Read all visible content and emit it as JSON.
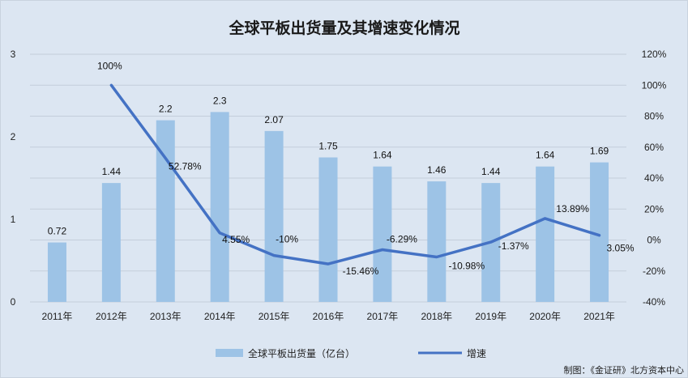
{
  "chart_data": {
    "type": "bar+line",
    "title": "全球平板出货量及其增速变化情况",
    "categories": [
      "2011年",
      "2012年",
      "2013年",
      "2014年",
      "2015年",
      "2016年",
      "2017年",
      "2018年",
      "2019年",
      "2020年",
      "2021年"
    ],
    "series": [
      {
        "name": "全球平板出货量（亿台）",
        "type": "bar",
        "axis": "left",
        "values": [
          0.72,
          1.44,
          2.2,
          2.3,
          2.07,
          1.75,
          1.64,
          1.46,
          1.44,
          1.64,
          1.69
        ],
        "labels": [
          "0.72",
          "1.44",
          "2.2",
          "2.3",
          "2.07",
          "1.75",
          "1.64",
          "1.46",
          "1.44",
          "1.64",
          "1.69"
        ],
        "color": "#9dc3e6"
      },
      {
        "name": "增速",
        "type": "line",
        "axis": "right",
        "values": [
          null,
          100,
          52.78,
          4.55,
          -10,
          -15.46,
          -6.29,
          -10.98,
          -1.37,
          13.89,
          3.05
        ],
        "labels": [
          "",
          "100%",
          "52.78%",
          "4.55%",
          "-10%",
          "-15.46%",
          "-6.29%",
          "-10.98%",
          "-1.37%",
          "13.89%",
          "3.05%"
        ],
        "color": "#4472c4"
      }
    ],
    "y_left": {
      "ylim": [
        0,
        3
      ],
      "ticks": [
        "0",
        "1",
        "2",
        "3"
      ]
    },
    "y_right": {
      "ylim": [
        -40,
        120
      ],
      "ticks": [
        "-40%",
        "-20%",
        "0%",
        "20%",
        "40%",
        "60%",
        "80%",
        "100%",
        "120%"
      ]
    },
    "grid": true,
    "legend": "bottom",
    "source": "制图：《金证研》北方资本中心"
  }
}
